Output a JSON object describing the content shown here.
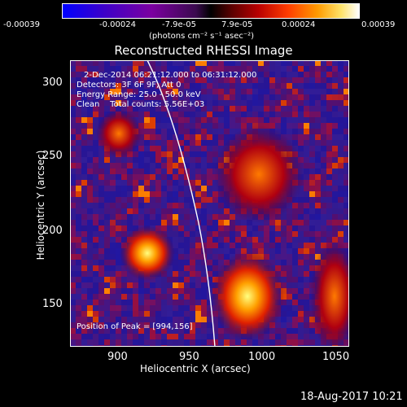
{
  "colorbar": {
    "tick_labels": [
      "-0.00039",
      "-0.00024",
      "-7.9e-05",
      "7.9e-05",
      "0.00024",
      "0.00039"
    ],
    "units": "(photons cm⁻² s⁻¹ asec⁻²)",
    "range": [
      -0.00039,
      0.00039
    ]
  },
  "chart_data": {
    "type": "heatmap",
    "title": "Reconstructed RHESSI Image",
    "xlabel": "Heliocentric X (arcsec)",
    "ylabel": "Heliocentric Y (arcsec)",
    "xlim": [
      862,
      1055
    ],
    "ylim": [
      122,
      315
    ],
    "x_ticks": [
      "900",
      "950",
      "1000",
      "1050"
    ],
    "y_ticks": [
      "150",
      "200",
      "250",
      "300"
    ],
    "annotations": {
      "time": "2-Dec-2014 06:21:12.000 to 06:31:12.000",
      "detectors": "Detectors: 3F 6F 9F, Att 0",
      "energy": "Energy Range: 25.0 - 50.0 keV",
      "clean": "Clean    Total counts: 5.56E+03",
      "peak": "Position of Peak = [994,156]"
    },
    "peak": [
      994,
      156
    ],
    "limb_color": "#ffffff"
  },
  "footer": {
    "timestamp": "18-Aug-2017 10:21"
  }
}
